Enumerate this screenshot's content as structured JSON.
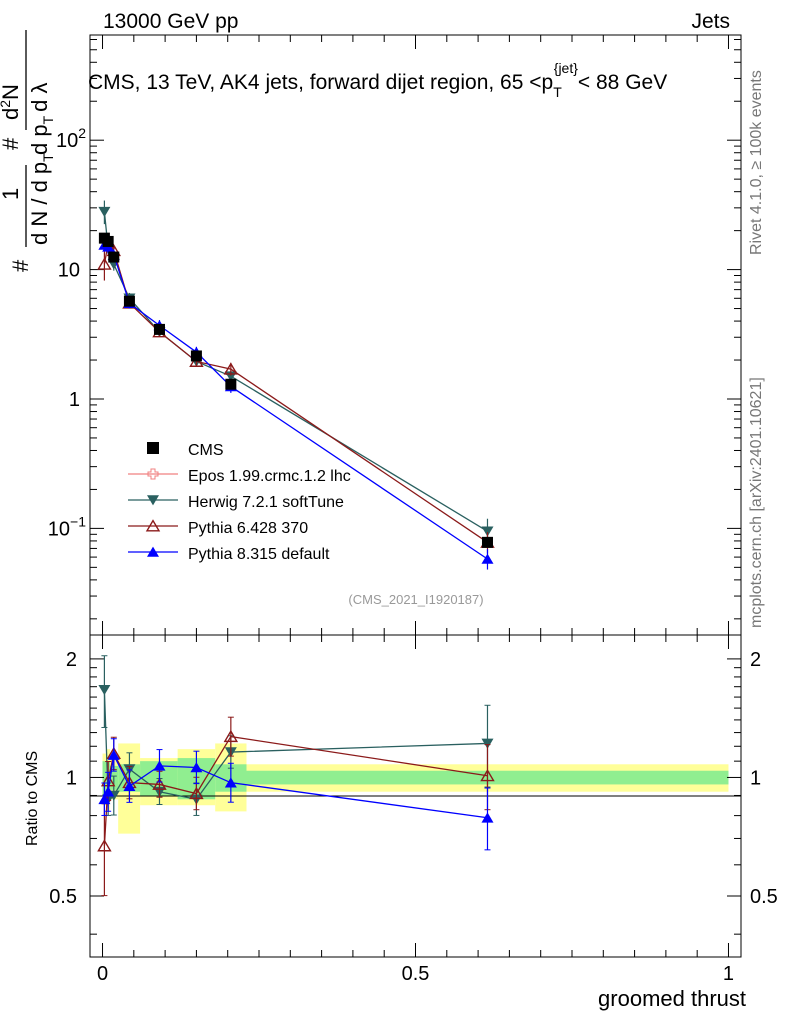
{
  "header": {
    "left": "13000 GeV pp",
    "right": "Jets",
    "rivet": "Rivet 4.1.0, ≥ 100k events",
    "mcplots": "mcplots.cern.ch [arXiv:2401.10621]",
    "analysis": "(CMS_2021_I1920187)"
  },
  "title": {
    "main": "CMS, 13 TeV, AK4 jets, forward dijet region, 65 <p",
    "sub": "T",
    "sup": "{jet}",
    "end": "< 88 GeV"
  },
  "ylabel": {
    "one": "1",
    "hash1": "#",
    "den": "d N / d p",
    "den_sub": "T",
    "hash2": "#",
    "num": "d",
    "num_sup": "2",
    "num_end": "N",
    "lower": "d p",
    "lower_sub": "T",
    "lower_end": "d λ"
  },
  "ratio_ylabel": "Ratio to CMS",
  "xlabel": "groomed thrust",
  "upper_ticks": [
    {
      "value": 0.1,
      "base": "10",
      "exp": "−1"
    },
    {
      "value": 1,
      "base": "1",
      "exp": ""
    },
    {
      "value": 10,
      "base": "10",
      "exp": ""
    },
    {
      "value": 100,
      "base": "10",
      "exp": "2"
    }
  ],
  "ratio_ticks": [
    {
      "value": 0.5,
      "label": "0.5"
    },
    {
      "value": 1,
      "label": "1"
    },
    {
      "value": 2,
      "label": "2"
    }
  ],
  "x_ticks": [
    {
      "value": 0,
      "label": "0"
    },
    {
      "value": 0.5,
      "label": "0.5"
    },
    {
      "value": 1,
      "label": "1"
    }
  ],
  "legend": [
    {
      "label": "CMS",
      "color": "#000000",
      "marker": "square-filled"
    },
    {
      "label": "Epos 1.99.crmc.1.2 lhc",
      "color": "#f08080",
      "marker": "cross-open"
    },
    {
      "label": "Herwig 7.2.1 softTune",
      "color": "#2a6060",
      "marker": "triangle-down-filled"
    },
    {
      "label": "Pythia 6.428 370",
      "color": "#8b1a1a",
      "marker": "triangle-up-open"
    },
    {
      "label": "Pythia 8.315 default",
      "color": "#0000ff",
      "marker": "triangle-up-filled"
    }
  ],
  "chart_data": {
    "type": "scatter",
    "xlabel": "groomed thrust",
    "xlim": [
      -0.02,
      1.02
    ],
    "ylim_upper": [
      0.015,
      650
    ],
    "ylim_ratio": [
      0.35,
      2.3
    ],
    "upper_log": true,
    "x": [
      0.003,
      0.009,
      0.018,
      0.043,
      0.091,
      0.15,
      0.205,
      0.615
    ],
    "data": {
      "name": "CMS",
      "values": [
        17.5,
        16.5,
        12.5,
        5.7,
        3.45,
        2.15,
        1.3,
        0.078
      ],
      "ratio_band_inner": [
        [
          0.9,
          1.1
        ],
        [
          0.9,
          1.1
        ],
        [
          0.93,
          1.07
        ],
        [
          0.92,
          1.08
        ],
        [
          0.9,
          1.1
        ],
        [
          0.88,
          1.12
        ],
        [
          0.92,
          1.08
        ],
        [
          0.96,
          1.04
        ]
      ],
      "ratio_band_outer": [
        [
          0.85,
          1.15
        ],
        [
          0.82,
          1.18
        ],
        [
          0.88,
          1.12
        ],
        [
          0.72,
          1.22
        ],
        [
          0.85,
          1.12
        ],
        [
          0.85,
          1.18
        ],
        [
          0.82,
          1.22
        ],
        [
          0.92,
          1.08
        ]
      ],
      "band_edges": [
        0,
        0.006,
        0.012,
        0.025,
        0.06,
        0.12,
        0.18,
        0.23,
        1.0
      ]
    },
    "series": [
      {
        "name": "Herwig 7.2.1 softTune",
        "color": "#2a6060",
        "marker": "triangle-down-filled",
        "values": [
          28.0,
          14.5,
          11.0,
          6.0,
          3.3,
          1.95,
          1.5,
          0.095
        ],
        "ratios": [
          1.67,
          0.88,
          0.9,
          1.05,
          0.92,
          0.88,
          1.16,
          1.22
        ],
        "errors": [
          0.22,
          0.1,
          0.12,
          0.1,
          0.08,
          0.1,
          0.1,
          0.25
        ]
      },
      {
        "name": "Pythia 6.428 370",
        "color": "#8b1a1a",
        "marker": "triangle-up-open",
        "values": [
          11.0,
          16.0,
          14.0,
          5.5,
          3.3,
          1.95,
          1.7,
          0.078
        ],
        "ratios": [
          0.67,
          0.98,
          1.15,
          0.97,
          0.96,
          0.91,
          1.27,
          1.01
        ],
        "errors": [
          0.28,
          0.12,
          0.1,
          0.1,
          0.08,
          0.1,
          0.12,
          0.2
        ]
      },
      {
        "name": "Pythia 8.315 default",
        "color": "#0000ff",
        "marker": "triangle-up-filled",
        "values": [
          15.5,
          15.0,
          13.0,
          5.5,
          3.7,
          2.3,
          1.25,
          0.058
        ],
        "ratios": [
          0.88,
          0.92,
          1.14,
          0.95,
          1.07,
          1.06,
          0.97,
          0.79
        ],
        "errors": [
          0.1,
          0.12,
          0.1,
          0.1,
          0.1,
          0.1,
          0.12,
          0.19
        ]
      }
    ]
  }
}
